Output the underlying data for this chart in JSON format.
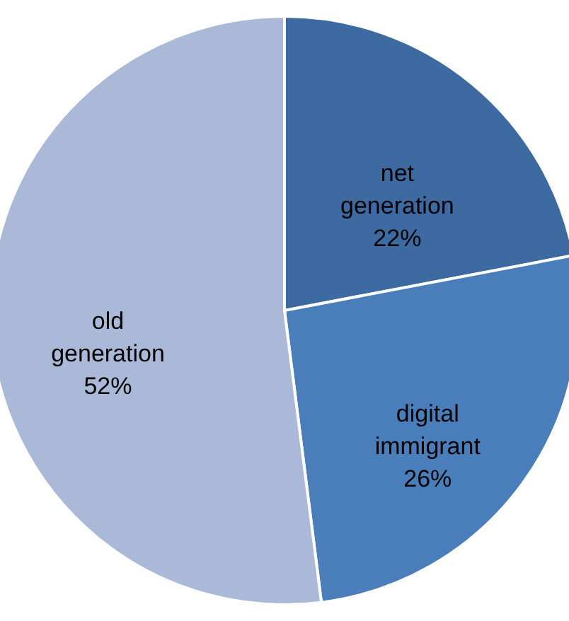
{
  "chart_data": {
    "type": "pie",
    "categories": [
      "net generation",
      "digital immigrant",
      "old generation"
    ],
    "values": [
      22,
      26,
      52
    ],
    "colors": [
      "#3d6aa1",
      "#4a7ebb",
      "#aab9d8"
    ],
    "value_labels": [
      "22%",
      "26%",
      "52%"
    ]
  }
}
